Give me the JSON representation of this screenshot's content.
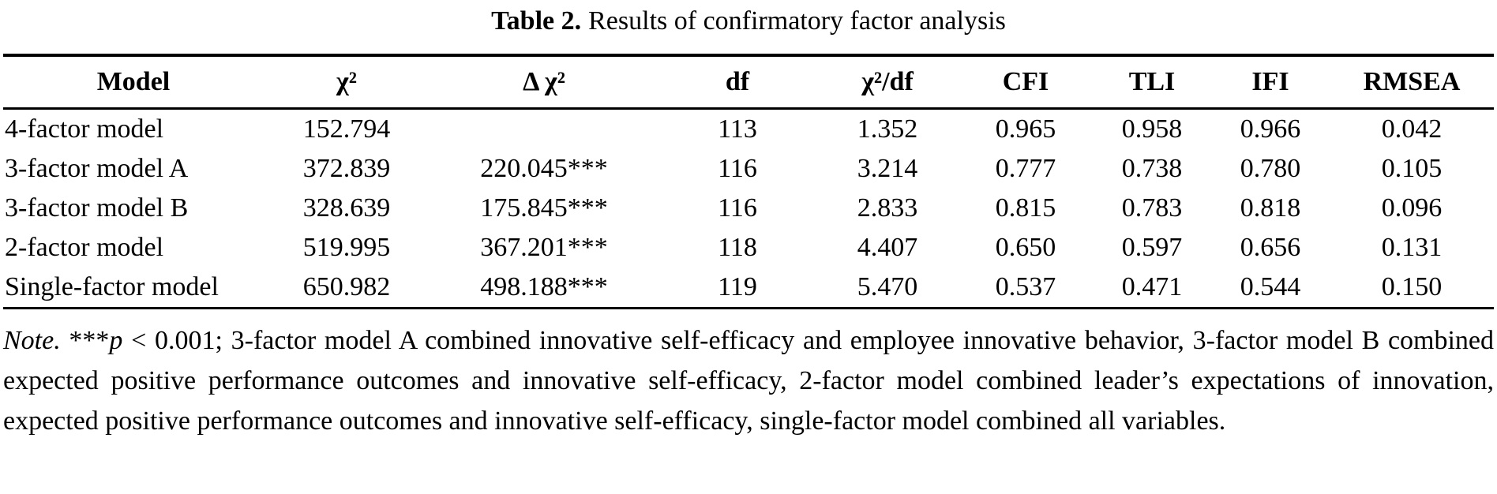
{
  "title": {
    "label": "Table 2.",
    "text": "Results of confirmatory factor analysis"
  },
  "table": {
    "columns": [
      "Model",
      "χ²",
      "Δ χ²",
      "df",
      "χ²/df",
      "CFI",
      "TLI",
      "IFI",
      "RMSEA"
    ],
    "column_keys": [
      "model",
      "chi2",
      "delta-chi2",
      "df",
      "chi2-df",
      "cfi",
      "tli",
      "ifi",
      "rmsea"
    ],
    "rows": [
      [
        "4-factor model",
        "152.794",
        "",
        "113",
        "1.352",
        "0.965",
        "0.958",
        "0.966",
        "0.042"
      ],
      [
        "3-factor model A",
        "372.839",
        "220.045***",
        "116",
        "3.214",
        "0.777",
        "0.738",
        "0.780",
        "0.105"
      ],
      [
        "3-factor model B",
        "328.639",
        "175.845***",
        "116",
        "2.833",
        "0.815",
        "0.783",
        "0.818",
        "0.096"
      ],
      [
        "2-factor model",
        "519.995",
        "367.201***",
        "118",
        "4.407",
        "0.650",
        "0.597",
        "0.656",
        "0.131"
      ],
      [
        "Single-factor model",
        "650.982",
        "498.188***",
        "119",
        "5.470",
        "0.537",
        "0.471",
        "0.544",
        "0.150"
      ]
    ]
  },
  "note": {
    "label": "Note.",
    "stars": "***",
    "p": "p",
    "body": "< 0.001; 3-factor model A combined innovative self-efficacy and employee innovative behavior, 3-factor model B combined expected positive performance outcomes and innovative self-efficacy, 2-factor model combined leader’s expectations of innovation, expected positive performance outcomes and innovative self-efficacy, single-factor model combined all variables."
  },
  "colors": {
    "text": "#000000",
    "background": "#ffffff",
    "rule": "#000000"
  }
}
